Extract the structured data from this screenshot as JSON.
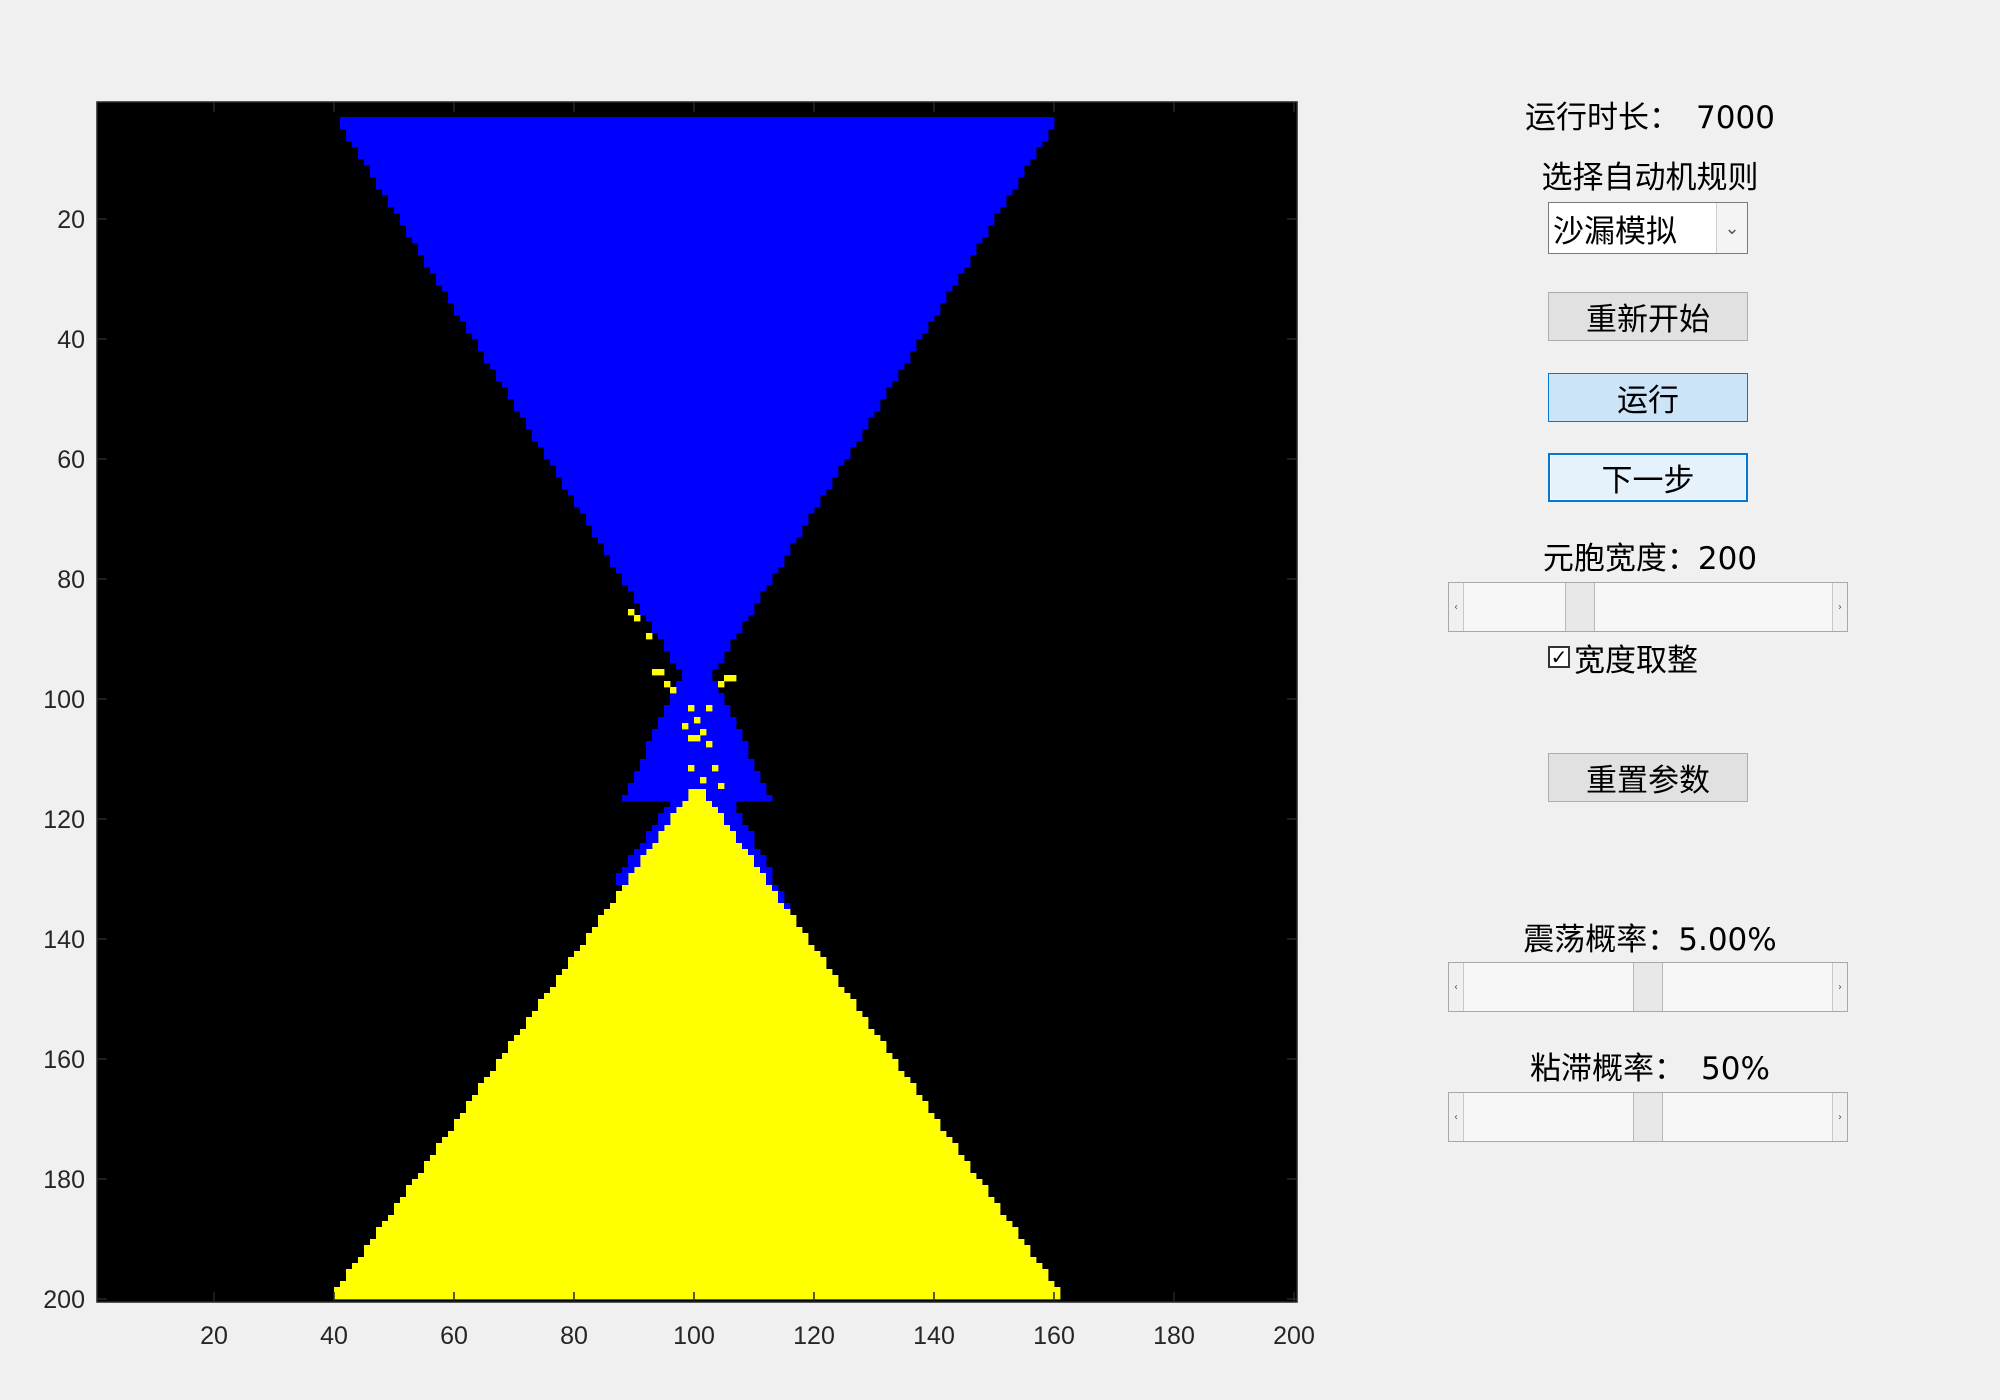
{
  "figure": {
    "grid": {
      "rows": 200,
      "cols": 200,
      "colors": {
        "empty": "#000000",
        "upper": "#0000ff",
        "lower": "#ffff00"
      }
    },
    "x_ticks": [
      "20",
      "40",
      "60",
      "80",
      "100",
      "120",
      "140",
      "160",
      "180",
      "200"
    ],
    "y_ticks": [
      "20",
      "40",
      "60",
      "80",
      "100",
      "120",
      "140",
      "160",
      "180",
      "200"
    ]
  },
  "panel": {
    "runtime": {
      "label": "运行时长：",
      "value": "7000"
    },
    "rule": {
      "label": "选择自动机规则",
      "selected": "沙漏模拟"
    },
    "buttons": {
      "restart": "重新开始",
      "run": "运行",
      "step": "下一步",
      "reset_params": "重置参数"
    },
    "cell_width": {
      "label": "元胞宽度：",
      "value": "200",
      "slider_fraction": 0.3
    },
    "round_width": {
      "label": "宽度取整",
      "checked": true
    },
    "shake": {
      "label": "震荡概率：",
      "value": "5.00%",
      "slider_fraction": 0.5
    },
    "sticky": {
      "label": "粘滞概率：",
      "value": "50%",
      "slider_fraction": 0.5
    }
  }
}
